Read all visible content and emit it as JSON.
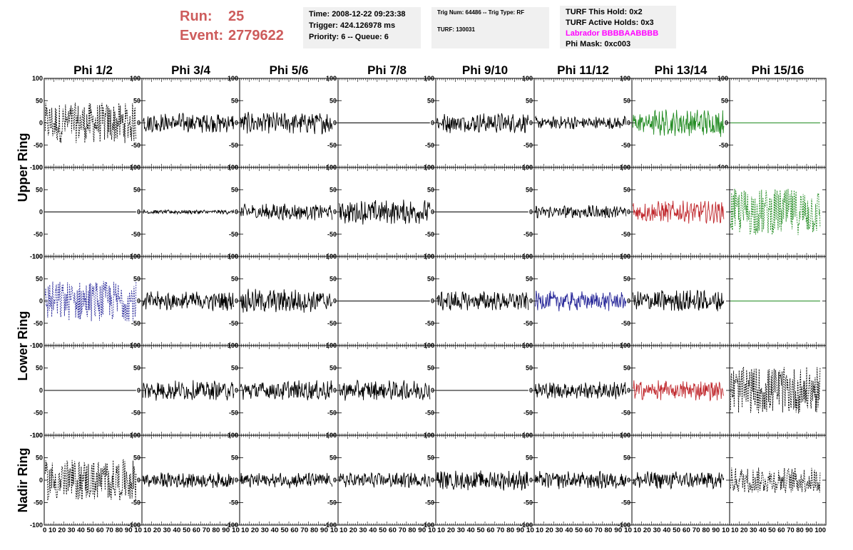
{
  "header": {
    "run_label": "Run:",
    "run_value": "25",
    "event_label": "Event:",
    "event_value": "2779622",
    "time": "Time: 2008-12-22 09:23:38",
    "trigger": "Trigger: 424.126978 ms",
    "priority": "Priority: 6 -- Queue: 6",
    "trig_num": "Trig Num: 64486 -- Trig Type: RF",
    "turf": "TURF: 130031",
    "turf_this_hold": "TURF This Hold: 0x2",
    "turf_active_holds": "TURF Active Holds: 0x3",
    "labrador": "Labrador BBBBAABBBB",
    "phi_mask": "Phi Mask: 0xc003"
  },
  "colors": {
    "run_text": "#cd5c5c",
    "labrador_text": "#ff00ff",
    "green_trace": "#228b22",
    "red_trace": "#c0282d",
    "blue_trace": "#2a2a9a",
    "black_trace": "#000000"
  },
  "chart_data": {
    "type": "line",
    "columns": [
      "Phi 1/2",
      "Phi 3/4",
      "Phi 5/6",
      "Phi 7/8",
      "Phi 9/10",
      "Phi 11/12",
      "Phi 13/14",
      "Phi 15/16"
    ],
    "rows": [
      "Upper Ring",
      "Lower Ring",
      "Nadir Ring"
    ],
    "xlim": [
      0,
      100
    ],
    "ylim": [
      -100,
      100
    ],
    "y_ticks": [
      "100",
      "50",
      "0",
      "-50",
      "-100"
    ],
    "x_tick_labels": [
      "0",
      "10",
      "20",
      "30",
      "40",
      "50",
      "60",
      "70",
      "80",
      "90",
      "100"
    ],
    "bottom_axis_strings": [
      "0 10 20 30 40 50 60 70 80 90 10",
      "10 20 30 40 50 60 70 80 90 10",
      "10 20 30 40 50 60 70 80 90 10",
      "10 20 30 40 50 60 70 80 90 10",
      "10 20 30 40 50 60 70 80 90 10",
      "10 20 30 40 50 60 70 80 90 10",
      "10 20 30 40 50 60 70 80 90 10",
      "10 20 30 40 50 60 70 80 90 100"
    ],
    "panels": [
      [
        {
          "a": 35,
          "c": "black",
          "d": 1,
          "t": "l"
        },
        {
          "a": 18,
          "c": "black",
          "d": 0,
          "t": "r"
        },
        {
          "a": 20,
          "c": "black",
          "d": 0,
          "t": "r"
        },
        {
          "a": 0,
          "c": "black",
          "d": 0,
          "t": "r"
        },
        {
          "a": 18,
          "c": "black",
          "d": 0,
          "t": "r"
        },
        {
          "a": 12,
          "c": "black",
          "d": 0,
          "t": "r"
        },
        {
          "a": 25,
          "c": "green",
          "d": 0,
          "t": "r"
        },
        {
          "a": 0,
          "c": "green",
          "d": 0,
          "t": "r"
        }
      ],
      [
        {
          "a": 0,
          "c": "black",
          "d": 0,
          "t": "l"
        },
        {
          "a": 4,
          "c": "black",
          "d": 0,
          "t": "r"
        },
        {
          "a": 15,
          "c": "black",
          "d": 0,
          "t": "r"
        },
        {
          "a": 22,
          "c": "black",
          "d": 0,
          "t": "r"
        },
        {
          "a": 0,
          "c": "black",
          "d": 0,
          "t": "r"
        },
        {
          "a": 12,
          "c": "black",
          "d": 0,
          "t": "r"
        },
        {
          "a": 20,
          "c": "red",
          "d": 0,
          "t": "r"
        },
        {
          "a": 40,
          "c": "green",
          "d": 1,
          "t": "n"
        }
      ],
      [
        {
          "a": 35,
          "c": "blue",
          "d": 1,
          "t": "l"
        },
        {
          "a": 18,
          "c": "black",
          "d": 0,
          "t": "r"
        },
        {
          "a": 22,
          "c": "black",
          "d": 0,
          "t": "r"
        },
        {
          "a": 0,
          "c": "black",
          "d": 0,
          "t": "r"
        },
        {
          "a": 18,
          "c": "black",
          "d": 0,
          "t": "r"
        },
        {
          "a": 18,
          "c": "blue",
          "d": 0,
          "t": "r"
        },
        {
          "a": 20,
          "c": "black",
          "d": 0,
          "t": "r"
        },
        {
          "a": 0,
          "c": "green",
          "d": 0,
          "t": "n"
        }
      ],
      [
        {
          "a": 0,
          "c": "black",
          "d": 0,
          "t": "l"
        },
        {
          "a": 18,
          "c": "black",
          "d": 0,
          "t": "r"
        },
        {
          "a": 18,
          "c": "black",
          "d": 0,
          "t": "r"
        },
        {
          "a": 18,
          "c": "black",
          "d": 0,
          "t": "r"
        },
        {
          "a": 0,
          "c": "black",
          "d": 0,
          "t": "r"
        },
        {
          "a": 16,
          "c": "black",
          "d": 0,
          "t": "r"
        },
        {
          "a": 18,
          "c": "red",
          "d": 0,
          "t": "r"
        },
        {
          "a": 40,
          "c": "black",
          "d": 1,
          "t": "n"
        }
      ],
      [
        {
          "a": 35,
          "c": "black",
          "d": 1,
          "t": "l"
        },
        {
          "a": 14,
          "c": "black",
          "d": 0,
          "t": "r"
        },
        {
          "a": 14,
          "c": "black",
          "d": 0,
          "t": "r"
        },
        {
          "a": 14,
          "c": "black",
          "d": 0,
          "t": "r"
        },
        {
          "a": 18,
          "c": "black",
          "d": 0,
          "t": "r"
        },
        {
          "a": 16,
          "c": "black",
          "d": 0,
          "t": "r"
        },
        {
          "a": 16,
          "c": "black",
          "d": 0,
          "t": "r"
        },
        {
          "a": 22,
          "c": "black",
          "d": 1,
          "t": "n"
        }
      ]
    ]
  }
}
